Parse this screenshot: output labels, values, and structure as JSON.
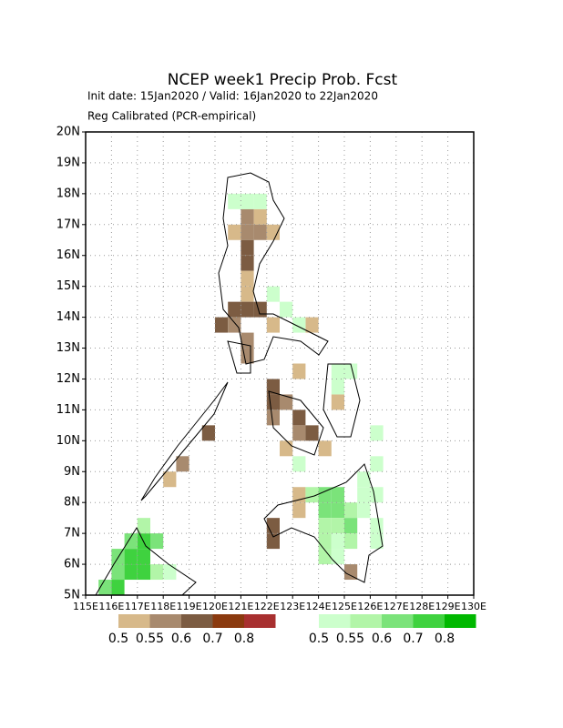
{
  "chart_data": {
    "type": "grid-map",
    "title": "NCEP week1 Precip Prob. Fcst",
    "subtitle": "Init date: 15Jan2020 / Valid: 16Jan2020 to 22Jan2020",
    "method": "Reg Calibrated (PCR-empirical)",
    "xlim": [
      115,
      130
    ],
    "ylim": [
      5,
      20
    ],
    "xticks": [
      {
        "value": 115,
        "label": "115E"
      },
      {
        "value": 116,
        "label": "116E"
      },
      {
        "value": 117,
        "label": "117E"
      },
      {
        "value": 118,
        "label": "118E"
      },
      {
        "value": 119,
        "label": "119E"
      },
      {
        "value": 120,
        "label": "120E"
      },
      {
        "value": 121,
        "label": "121E"
      },
      {
        "value": 122,
        "label": "122E"
      },
      {
        "value": 123,
        "label": "123E"
      },
      {
        "value": 124,
        "label": "124E"
      },
      {
        "value": 125,
        "label": "125E"
      },
      {
        "value": 126,
        "label": "126E"
      },
      {
        "value": 127,
        "label": "127E"
      },
      {
        "value": 128,
        "label": "128E"
      },
      {
        "value": 129,
        "label": "129E"
      },
      {
        "value": 130,
        "label": "130E"
      }
    ],
    "yticks": [
      {
        "value": 5,
        "label": "5N"
      },
      {
        "value": 6,
        "label": "6N"
      },
      {
        "value": 7,
        "label": "7N"
      },
      {
        "value": 8,
        "label": "8N"
      },
      {
        "value": 9,
        "label": "9N"
      },
      {
        "value": 10,
        "label": "10N"
      },
      {
        "value": 11,
        "label": "11N"
      },
      {
        "value": 12,
        "label": "12N"
      },
      {
        "value": 13,
        "label": "13N"
      },
      {
        "value": 14,
        "label": "14N"
      },
      {
        "value": 15,
        "label": "15N"
      },
      {
        "value": 16,
        "label": "16N"
      },
      {
        "value": 17,
        "label": "17N"
      },
      {
        "value": 18,
        "label": "18N"
      },
      {
        "value": 19,
        "label": "19N"
      },
      {
        "value": 20,
        "label": "20N"
      }
    ],
    "grid": true,
    "cell_size": 0.5,
    "legend_ticks": [
      0.5,
      0.55,
      0.6,
      0.7,
      0.8
    ],
    "dry_colors": [
      "#d7b98a",
      "#a88a6e",
      "#7c5c42",
      "#8b3a0f",
      "#a83030"
    ],
    "wet_colors": [
      "#ccffcc",
      "#b2f5a8",
      "#7be37a",
      "#3fd23f",
      "#00b800"
    ],
    "dry_cells": [
      [
        121,
        17,
        0.55
      ],
      [
        121.5,
        17,
        0.5
      ],
      [
        120.5,
        16.5,
        0.5
      ],
      [
        121,
        16.5,
        0.55
      ],
      [
        121.5,
        16.5,
        0.55
      ],
      [
        122,
        16.5,
        0.5
      ],
      [
        121,
        16,
        0.6
      ],
      [
        121,
        15.5,
        0.6
      ],
      [
        121,
        15,
        0.5
      ],
      [
        121,
        14.5,
        0.5
      ],
      [
        120.5,
        14,
        0.6
      ],
      [
        121,
        14,
        0.6
      ],
      [
        121.5,
        14,
        0.6
      ],
      [
        120,
        13.5,
        0.6
      ],
      [
        120.5,
        13.5,
        0.55
      ],
      [
        121,
        13,
        0.55
      ],
      [
        121,
        12.5,
        0.55
      ],
      [
        122,
        13.5,
        0.5
      ],
      [
        123.5,
        13.5,
        0.5
      ],
      [
        123,
        12,
        0.5
      ],
      [
        122,
        11.5,
        0.6
      ],
      [
        122,
        11,
        0.6
      ],
      [
        122.5,
        11,
        0.55
      ],
      [
        122,
        10.5,
        0.55
      ],
      [
        123,
        10.5,
        0.6
      ],
      [
        123,
        10,
        0.55
      ],
      [
        123.5,
        10,
        0.6
      ],
      [
        122.5,
        9.5,
        0.5
      ],
      [
        124,
        9.5,
        0.5
      ],
      [
        119.5,
        10,
        0.6
      ],
      [
        118.5,
        9,
        0.55
      ],
      [
        118,
        8.5,
        0.5
      ],
      [
        123,
        8,
        0.5
      ],
      [
        122,
        7,
        0.6
      ],
      [
        122,
        6.5,
        0.6
      ],
      [
        125,
        5.5,
        0.55
      ],
      [
        124.5,
        11,
        0.5
      ],
      [
        123,
        7.5,
        0.5
      ]
    ],
    "wet_cells": [
      [
        120.5,
        17.5,
        0.5
      ],
      [
        121,
        17.5,
        0.5
      ],
      [
        121.5,
        17.5,
        0.5
      ],
      [
        122,
        14.5,
        0.5
      ],
      [
        122.5,
        14,
        0.5
      ],
      [
        123,
        13.5,
        0.5
      ],
      [
        124.5,
        12,
        0.5
      ],
      [
        124.5,
        11.5,
        0.5
      ],
      [
        125,
        12,
        0.5
      ],
      [
        123.5,
        8,
        0.55
      ],
      [
        124,
        8,
        0.6
      ],
      [
        124.5,
        8,
        0.6
      ],
      [
        124,
        7.5,
        0.6
      ],
      [
        124.5,
        7.5,
        0.6
      ],
      [
        125,
        7.5,
        0.55
      ],
      [
        125.5,
        7.5,
        0.5
      ],
      [
        124,
        7,
        0.55
      ],
      [
        124.5,
        7,
        0.55
      ],
      [
        125,
        7,
        0.6
      ],
      [
        124,
        6.5,
        0.55
      ],
      [
        124.5,
        6.5,
        0.5
      ],
      [
        125,
        6.5,
        0.55
      ],
      [
        124,
        6,
        0.55
      ],
      [
        124.5,
        6,
        0.5
      ],
      [
        125.5,
        8,
        0.5
      ],
      [
        126,
        8,
        0.5
      ],
      [
        126,
        7,
        0.5
      ],
      [
        126,
        6.5,
        0.5
      ],
      [
        125.5,
        8.5,
        0.5
      ],
      [
        126,
        9,
        0.5
      ],
      [
        126,
        10,
        0.5
      ],
      [
        123,
        9,
        0.5
      ],
      [
        116,
        6,
        0.6
      ],
      [
        116.5,
        6,
        0.7
      ],
      [
        117,
        6,
        0.7
      ],
      [
        117,
        6.5,
        0.7
      ],
      [
        117.5,
        6.5,
        0.6
      ],
      [
        116.5,
        6.5,
        0.6
      ],
      [
        116,
        5.5,
        0.6
      ],
      [
        116.5,
        5.5,
        0.7
      ],
      [
        117,
        5.5,
        0.7
      ],
      [
        117.5,
        5.5,
        0.55
      ],
      [
        118,
        5.5,
        0.5
      ],
      [
        115.5,
        5,
        0.6
      ],
      [
        116,
        5,
        0.7
      ],
      [
        117,
        7,
        0.55
      ]
    ]
  }
}
